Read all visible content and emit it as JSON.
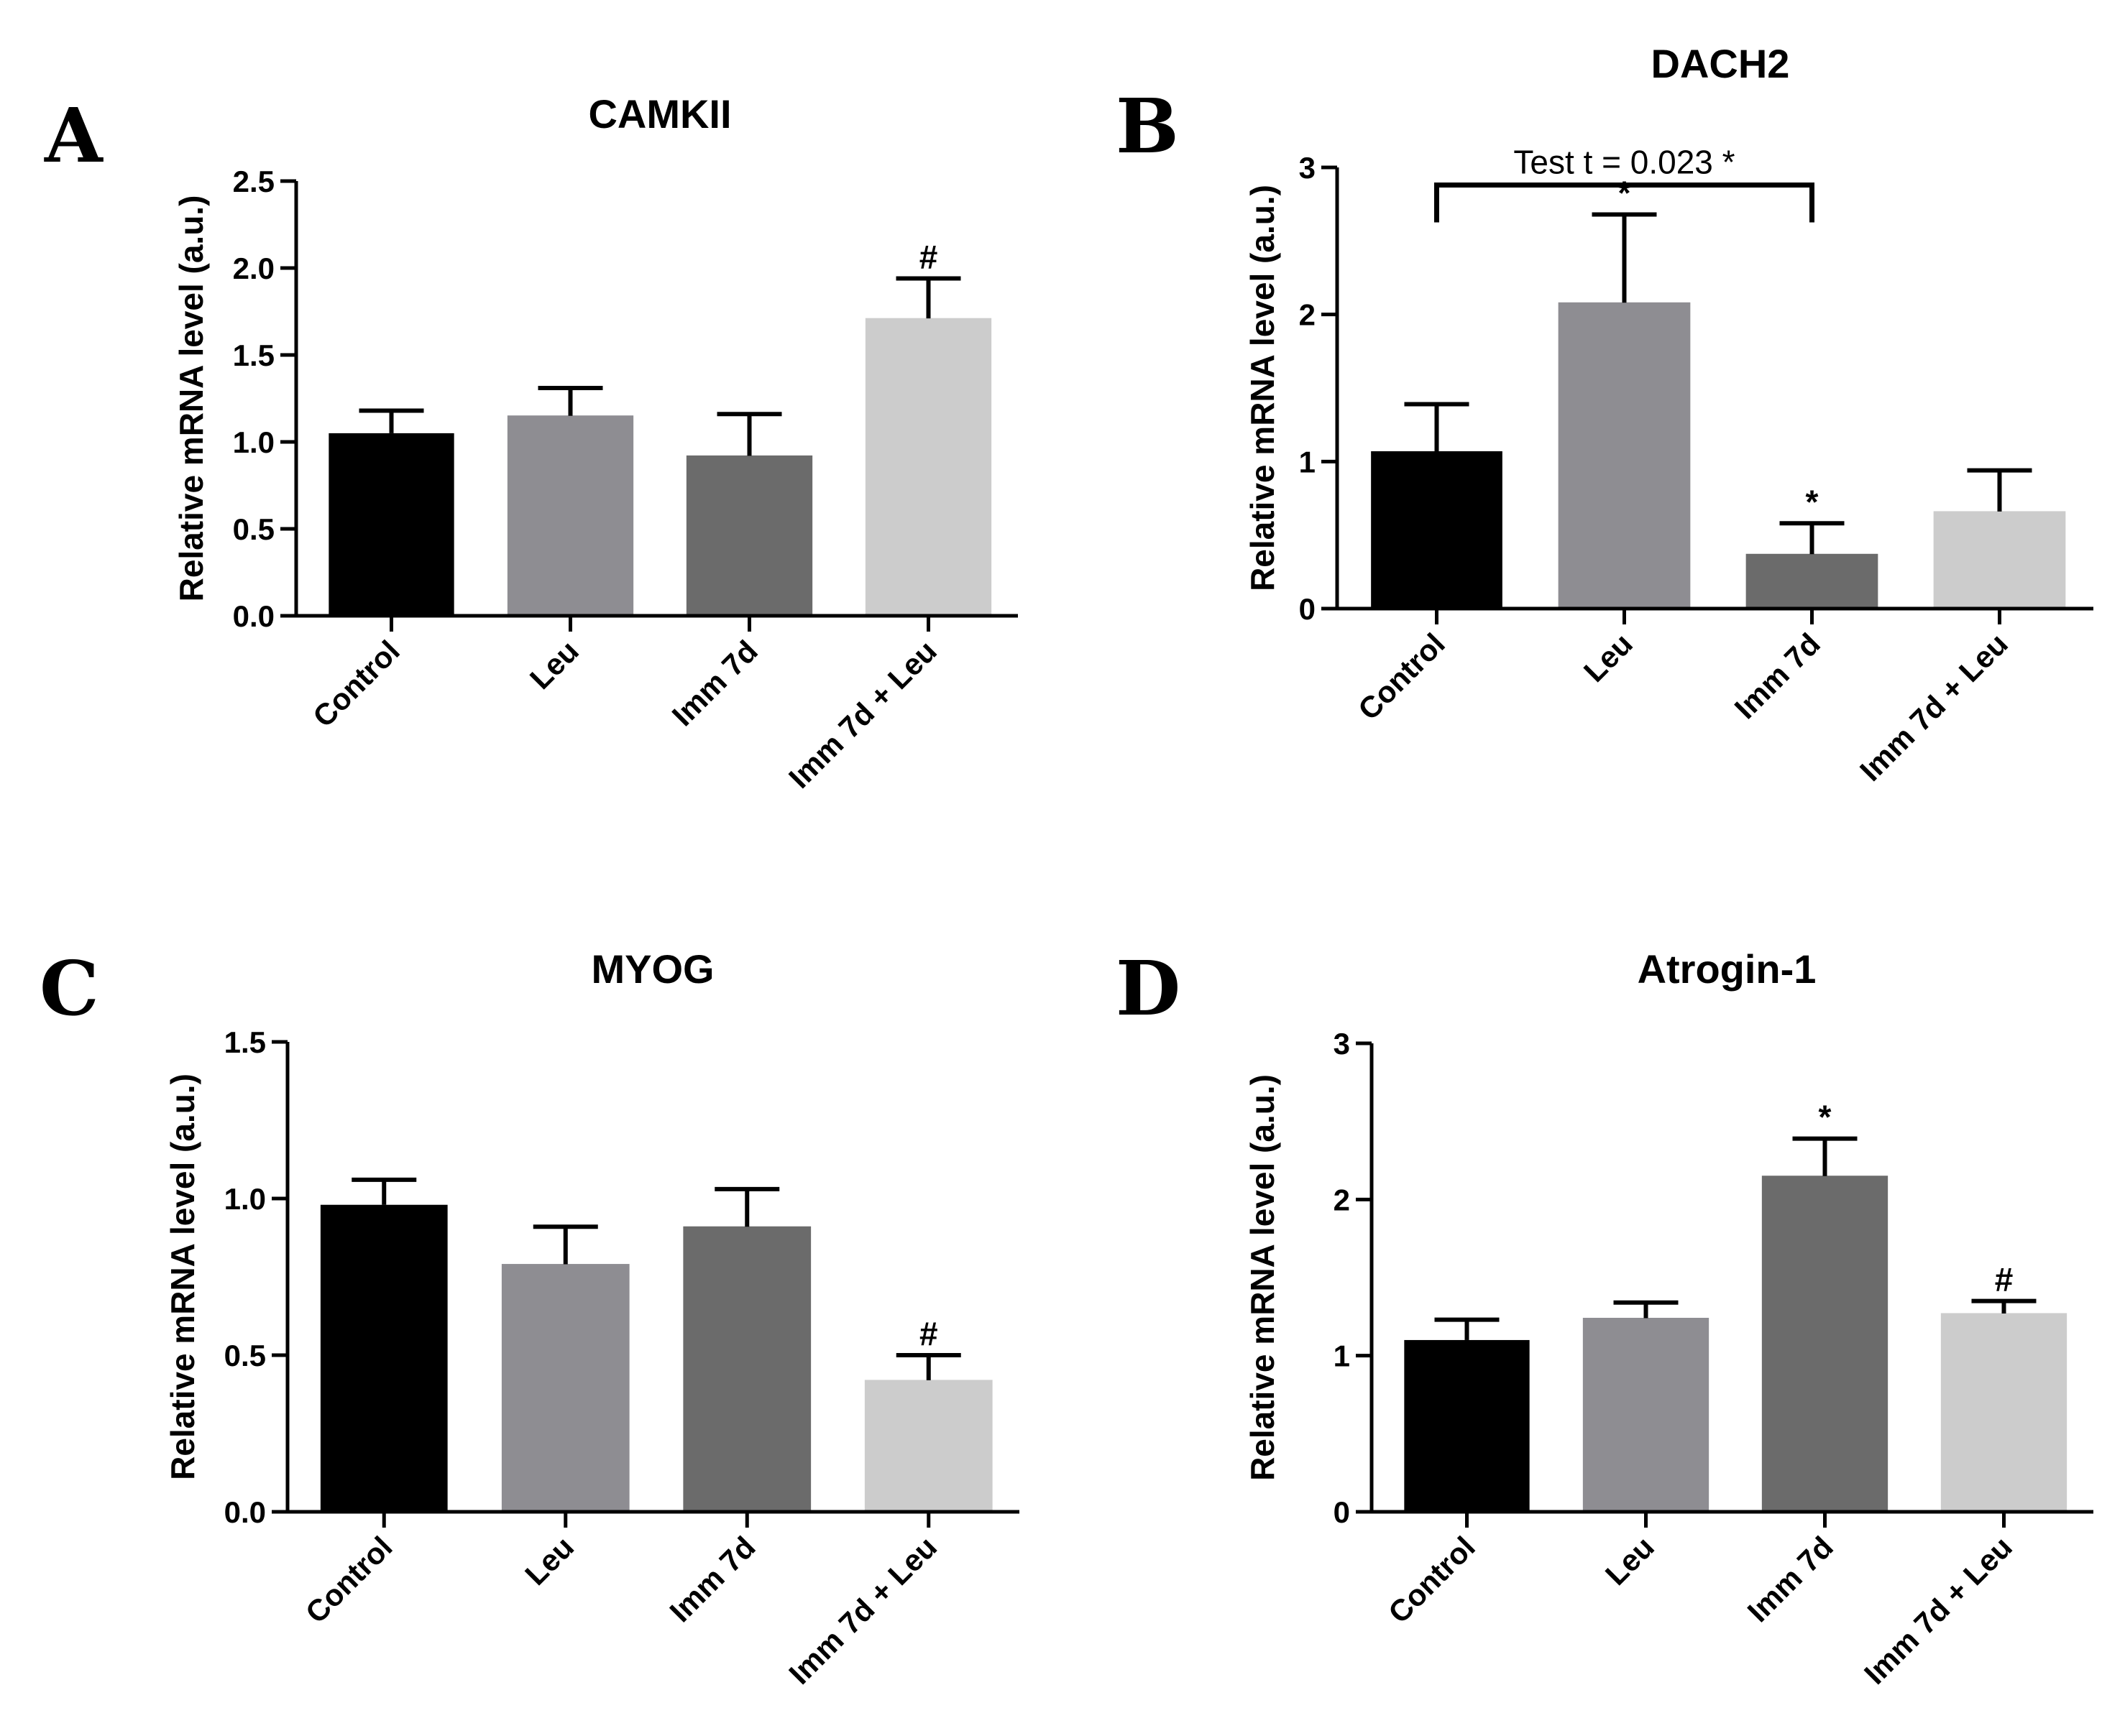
{
  "chart_data": [
    {
      "id": "A",
      "type": "bar",
      "panel_label": "A",
      "title": "CAMKII",
      "xlabel": "",
      "ylabel": "Relative mRNA level (a.u.)",
      "categories": [
        "Control",
        "Leu",
        "Imm 7d",
        "Imm 7d + Leu"
      ],
      "values": [
        1.05,
        1.15,
        0.92,
        1.71
      ],
      "errors": [
        0.13,
        0.16,
        0.24,
        0.23
      ],
      "colors": [
        "#000000",
        "#8e8d92",
        "#6b6b6b",
        "#cccccc"
      ],
      "ylim": [
        0,
        2.5
      ],
      "yticks": [
        0.0,
        0.5,
        1.0,
        1.5,
        2.0,
        2.5
      ],
      "ytick_labels": [
        "0.0",
        "0.5",
        "1.0",
        "1.5",
        "2.0",
        "2.5"
      ],
      "annotations": [
        "",
        "",
        "",
        "#"
      ],
      "bracket": null
    },
    {
      "id": "B",
      "type": "bar",
      "panel_label": "B",
      "title": "DACH2",
      "xlabel": "",
      "ylabel": "Relative mRNA level (a.u.)",
      "categories": [
        "Control",
        "Leu",
        "Imm 7d",
        "Imm 7d + Leu"
      ],
      "values": [
        1.07,
        2.08,
        0.37,
        0.66
      ],
      "errors": [
        0.32,
        0.6,
        0.21,
        0.28
      ],
      "colors": [
        "#000000",
        "#8e8d92",
        "#6b6b6b",
        "#cccccc"
      ],
      "ylim": [
        0,
        3
      ],
      "yticks": [
        0,
        1,
        2,
        3
      ],
      "ytick_labels": [
        "0",
        "1",
        "2",
        "3"
      ],
      "annotations": [
        "",
        "*",
        "*",
        ""
      ],
      "bracket": {
        "from": 0,
        "to": 2,
        "y": 2.88,
        "label": "Test t = 0.023 *"
      }
    },
    {
      "id": "C",
      "type": "bar",
      "panel_label": "C",
      "title": "MYOG",
      "xlabel": "",
      "ylabel": "Relative mRNA level (a.u.)",
      "categories": [
        "Control",
        "Leu",
        "Imm 7d",
        "Imm 7d + Leu"
      ],
      "values": [
        0.98,
        0.79,
        0.91,
        0.42
      ],
      "errors": [
        0.08,
        0.12,
        0.12,
        0.08
      ],
      "colors": [
        "#000000",
        "#8e8d92",
        "#6b6b6b",
        "#cccccc"
      ],
      "ylim": [
        0,
        1.5
      ],
      "yticks": [
        0.0,
        0.5,
        1.0,
        1.5
      ],
      "ytick_labels": [
        "0.0",
        "0.5",
        "1.0",
        "1.5"
      ],
      "annotations": [
        "",
        "",
        "",
        "#"
      ],
      "bracket": null
    },
    {
      "id": "D",
      "type": "bar",
      "panel_label": "D",
      "title": "Atrogin-1",
      "xlabel": "",
      "ylabel": "Relative mRNA level (a.u.)",
      "categories": [
        "Control",
        "Leu",
        "Imm 7d",
        "Imm 7d + Leu"
      ],
      "values": [
        1.1,
        1.24,
        2.15,
        1.27
      ],
      "errors": [
        0.13,
        0.1,
        0.24,
        0.08
      ],
      "colors": [
        "#000000",
        "#8e8d92",
        "#6b6b6b",
        "#cccccc"
      ],
      "ylim": [
        0,
        3
      ],
      "yticks": [
        0,
        1,
        2,
        3
      ],
      "ytick_labels": [
        "0",
        "1",
        "2",
        "3"
      ],
      "annotations": [
        "",
        "",
        "*",
        "#"
      ],
      "bracket": null
    }
  ]
}
